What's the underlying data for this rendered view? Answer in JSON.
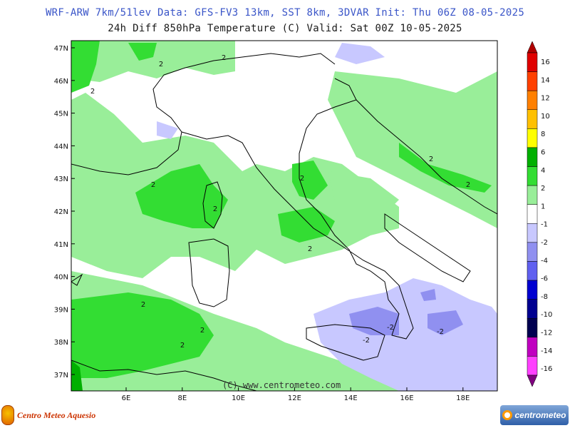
{
  "header": {
    "title_line1": "WRF-ARW 7km/51lev  Data: GFS-FV3 13km, SST 8km, 3DVAR  Init: Thu 06Z 08-05-2025",
    "title_line2": "24h Diff 850hPa Temperature (C)  Valid: Sat 00Z 10-05-2025"
  },
  "map": {
    "lat_labels": [
      "47N",
      "46N",
      "45N",
      "44N",
      "43N",
      "42N",
      "41N",
      "40N",
      "39N",
      "38N",
      "37N"
    ],
    "lon_labels": [
      "6E",
      "8E",
      "10E",
      "12E",
      "14E",
      "16E",
      "18E"
    ],
    "copyright": "(C) www.centrometeo.com",
    "contour_labels": [
      "2",
      "2",
      "2",
      "2",
      "2",
      "2",
      "2",
      "2",
      "2",
      "2",
      "2",
      "2",
      "-2",
      "-2",
      "-2"
    ]
  },
  "colorbar": {
    "labels": [
      "16",
      "14",
      "12",
      "10",
      "8",
      "6",
      "4",
      "2",
      "1",
      "-1",
      "-2",
      "-4",
      "-6",
      "-8",
      "-10",
      "-12",
      "-14",
      "-16"
    ],
    "colors": [
      "#b00000",
      "#e00000",
      "#ff4000",
      "#ff8000",
      "#ffc000",
      "#ffff00",
      "#00b000",
      "#33dd33",
      "#99ee99",
      "#ffffff",
      "#c8c8ff",
      "#9090f0",
      "#6060f0",
      "#0000d0",
      "#000090",
      "#000050",
      "#c000c0",
      "#ff40ff",
      "#800080"
    ]
  },
  "logos": {
    "left_text": "Centro Meteo Aquesio",
    "right_text": "centrometeo"
  }
}
